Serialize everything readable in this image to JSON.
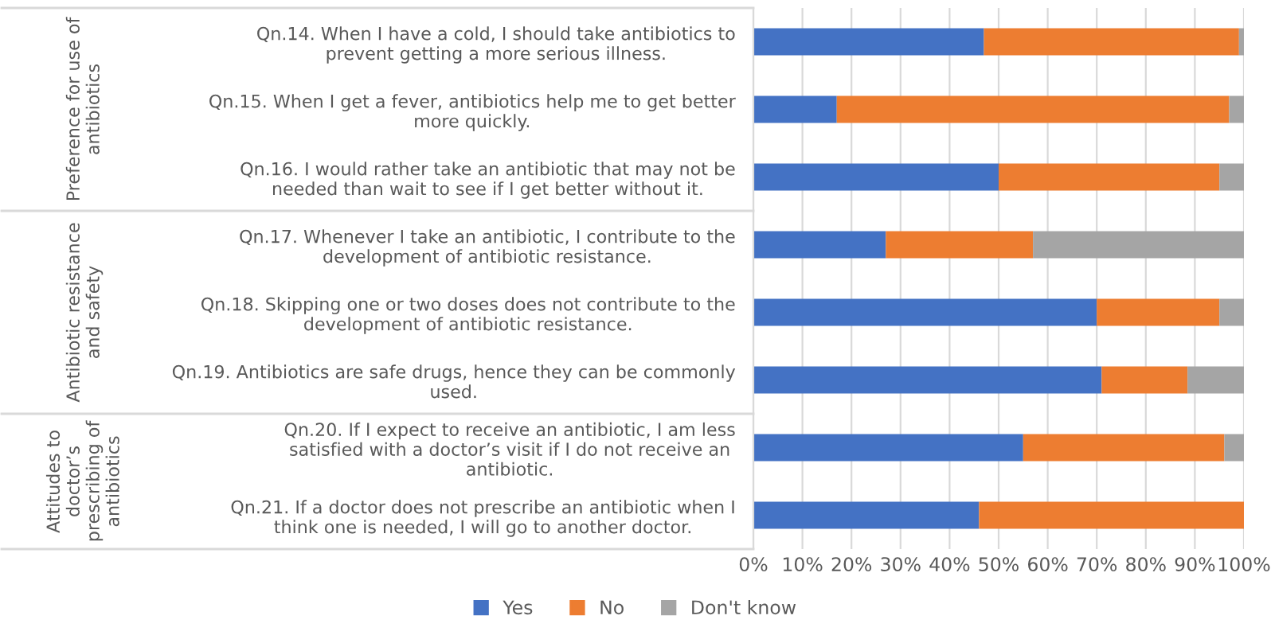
{
  "chart_data": {
    "type": "bar",
    "orientation": "horizontal",
    "stacked": true,
    "categories": [
      "Qn.14. When I have a cold, I should take antibiotics to prevent getting a more serious illness.",
      "Qn.15. When I get a fever, antibiotics help me to get better more quickly.",
      "Qn.16. I would rather take an antibiotic that may not be needed than wait to see if I get better without it.",
      "Qn.17. Whenever I take an antibiotic, I contribute to the development of antibiotic resistance.",
      "Qn.18. Skipping one or two doses does not contribute to the development of antibiotic resistance.",
      "Qn.19. Antibiotics are safe drugs, hence they can be commonly used.",
      "Qn.20. If I expect to receive an antibiotic, I am less satisfied with a doctor’s visit if I do not receive an antibiotic.",
      "Qn.21. If a doctor does not prescribe an antibiotic when I think one is needed, I will go to another doctor."
    ],
    "series": [
      {
        "name": "Yes",
        "color": "#4472c4",
        "values": [
          47,
          17,
          50,
          27,
          70,
          71,
          55,
          46
        ]
      },
      {
        "name": "No",
        "color": "#ed7d31",
        "values": [
          52,
          80,
          45,
          30,
          25,
          17.5,
          41,
          54
        ]
      },
      {
        "name": "Don't know",
        "color": "#a5a5a5",
        "values": [
          1,
          3,
          5,
          43,
          5,
          11.5,
          4,
          null
        ]
      }
    ],
    "xlim": [
      0,
      100
    ],
    "xticks": [
      {
        "value": 0,
        "label": "0%"
      },
      {
        "value": 10,
        "label": "10%"
      },
      {
        "value": 20,
        "label": "20%"
      },
      {
        "value": 30,
        "label": "30%"
      },
      {
        "value": 40,
        "label": "40%"
      },
      {
        "value": 50,
        "label": "50%"
      },
      {
        "value": 60,
        "label": "60%"
      },
      {
        "value": 70,
        "label": "70%"
      },
      {
        "value": 80,
        "label": "80%"
      },
      {
        "value": 90,
        "label": "90%"
      },
      {
        "value": 100,
        "label": "100%"
      }
    ],
    "annotations": [
      "Preference for use of antibiotics",
      "Antibiotic resistance and safety",
      "Attitudes to doctor’s prescribing of antibiotics"
    ],
    "grid": "x",
    "legend": "bottom"
  }
}
